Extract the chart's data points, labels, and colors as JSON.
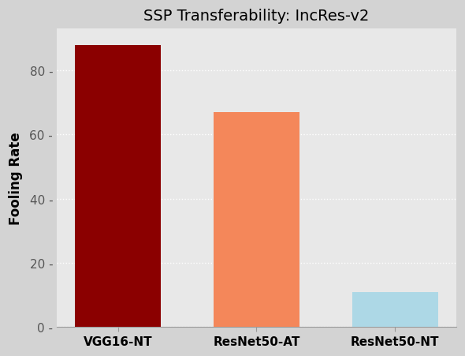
{
  "categories": [
    "VGG16-NT",
    "ResNet50-AT",
    "ResNet50-NT"
  ],
  "values": [
    88,
    67,
    11
  ],
  "bar_colors": [
    "#8B0000",
    "#F4875A",
    "#ADD8E6"
  ],
  "title": "SSP Transferability: IncRes-v2",
  "ylabel": "Fooling Rate",
  "ylim": [
    0,
    93
  ],
  "yticks": [
    0,
    20,
    40,
    60,
    80
  ],
  "plot_bg_color": "#E8E8E8",
  "margin_bg_color": "#D3D3D3",
  "grid_color": "#FFFFFF",
  "title_fontsize": 14,
  "label_fontsize": 12,
  "tick_fontsize": 11,
  "bar_width": 0.62
}
